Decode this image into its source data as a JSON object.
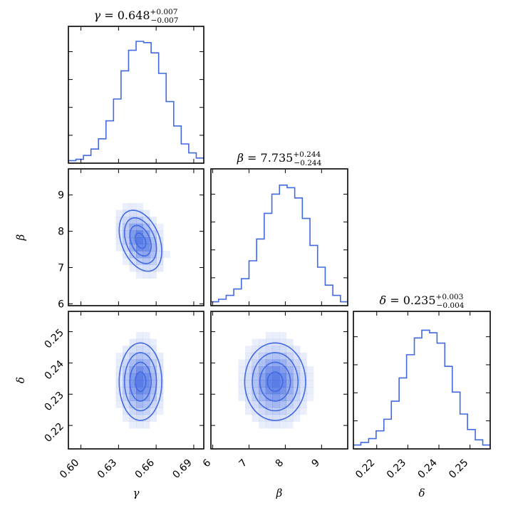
{
  "style": {
    "line_color": "#4169e1",
    "fill_color": "#4169e1"
  },
  "chart_data": {
    "type": "corner",
    "parameters": [
      {
        "key": "gamma",
        "symbol": "γ",
        "title_value": "0.648",
        "err_plus": "+0.007",
        "err_minus": "−0.007",
        "axis_label": "γ",
        "range": [
          0.59,
          0.698
        ],
        "ticks": [
          0.6,
          0.63,
          0.66,
          0.69
        ],
        "tick_labels": [
          "0.60",
          "0.63",
          "0.66",
          "0.69"
        ],
        "hist": {
          "bin_edges": [
            0.59,
            0.596,
            0.602,
            0.608,
            0.614,
            0.62,
            0.626,
            0.632,
            0.638,
            0.644,
            0.65,
            0.656,
            0.662,
            0.668,
            0.674,
            0.68,
            0.686,
            0.692,
            0.698
          ],
          "counts": [
            0.02,
            0.03,
            0.06,
            0.11,
            0.19,
            0.33,
            0.5,
            0.72,
            0.88,
            0.95,
            0.94,
            0.86,
            0.7,
            0.48,
            0.29,
            0.15,
            0.08,
            0.04
          ]
        }
      },
      {
        "key": "beta",
        "symbol": "β",
        "title_value": "7.735",
        "err_plus": "+0.244",
        "err_minus": "−0.244",
        "axis_label": "β",
        "range": [
          5.95,
          9.72
        ],
        "ticks": [
          6,
          7,
          8,
          9
        ],
        "tick_labels": [
          "6",
          "7",
          "8",
          "9"
        ],
        "hist": {
          "bin_edges": [
            5.95,
            6.16,
            6.37,
            6.58,
            6.79,
            7.0,
            7.21,
            7.42,
            7.63,
            7.84,
            8.05,
            8.26,
            8.47,
            8.68,
            8.89,
            9.1,
            9.31,
            9.52,
            9.72
          ],
          "counts": [
            0.03,
            0.05,
            0.08,
            0.13,
            0.21,
            0.35,
            0.52,
            0.72,
            0.87,
            0.94,
            0.92,
            0.84,
            0.68,
            0.47,
            0.3,
            0.16,
            0.08,
            0.03
          ]
        }
      },
      {
        "key": "delta",
        "symbol": "δ",
        "title_value": "0.235",
        "err_plus": "+0.003",
        "err_minus": "−0.004",
        "axis_label": "δ",
        "range": [
          0.2125,
          0.2565
        ],
        "ticks": [
          0.22,
          0.23,
          0.24,
          0.25
        ],
        "tick_labels": [
          "0.22",
          "0.23",
          "0.24",
          "0.25"
        ],
        "hist": {
          "bin_edges": [
            0.2125,
            0.2149,
            0.2174,
            0.2198,
            0.2223,
            0.2247,
            0.2272,
            0.2296,
            0.2321,
            0.2345,
            0.237,
            0.2394,
            0.2419,
            0.2443,
            0.2468,
            0.2492,
            0.2517,
            0.2541,
            0.2565
          ],
          "counts": [
            0.03,
            0.05,
            0.08,
            0.14,
            0.23,
            0.37,
            0.55,
            0.73,
            0.86,
            0.92,
            0.9,
            0.82,
            0.64,
            0.44,
            0.27,
            0.15,
            0.07,
            0.03
          ]
        }
      }
    ],
    "joint": [
      {
        "x": "gamma",
        "y": "beta",
        "center": [
          0.6475,
          7.74
        ],
        "sigma": [
          0.0085,
          0.42
        ],
        "rho": -0.35,
        "contour_levels_sigma": [
          0.5,
          1.0,
          1.5,
          2.0
        ]
      },
      {
        "x": "gamma",
        "y": "delta",
        "center": [
          0.6475,
          0.234
        ],
        "sigma": [
          0.0085,
          0.0062
        ],
        "rho": 0.0,
        "contour_levels_sigma": [
          0.5,
          1.0,
          1.5,
          2.0
        ]
      },
      {
        "x": "beta",
        "y": "delta",
        "center": [
          7.72,
          0.234
        ],
        "sigma": [
          0.42,
          0.0062
        ],
        "rho": 0.0,
        "contour_levels_sigma": [
          0.5,
          1.0,
          1.5,
          2.0
        ]
      }
    ],
    "grid": false
  }
}
